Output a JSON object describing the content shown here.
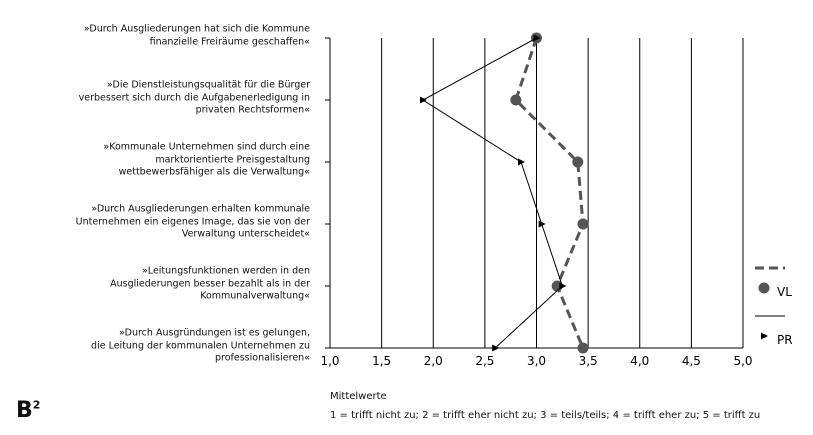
{
  "chart_data": {
    "type": "line",
    "orientation": "horizontal",
    "categories": [
      "»Durch Ausgliederungen hat sich die Kommune\nfinanzielle Freiräume geschaffen«",
      "»Die Dienstleistungsqualität für die Bürger\nverbessert sich durch die Aufgabenerledigung in\nprivaten Rechtsformen«",
      "»Kommunale Unternehmen sind durch eine\nmarktorientierte Preisgestaltung\nwettbewerbsfähiger als die Verwaltung«",
      "»Durch Ausgliederungen erhalten kommunale\nUnternehmen ein eigenes Image, das sie von der\nVerwaltung unterscheidet«",
      "»Leitungsfunktionen werden in den\nAusgliederungen besser bezahlt als in der\nKommunalverwaltung«",
      "»Durch Ausgründungen ist es gelungen,\ndie Leitung der kommunalen Unternehmen zu\nprofessionalisieren«"
    ],
    "series": [
      {
        "name": "VL",
        "color": "#555555",
        "line_style": "dashed",
        "marker": "circle",
        "values": [
          3.0,
          2.8,
          3.4,
          3.45,
          3.2,
          3.45
        ]
      },
      {
        "name": "PR",
        "color": "#000000",
        "line_style": "solid",
        "marker": "triangle",
        "values": [
          3.0,
          1.9,
          2.85,
          3.05,
          3.25,
          2.6
        ]
      }
    ],
    "xlim": [
      1,
      5
    ],
    "xticks": [
      {
        "value": 1,
        "label": "1,0"
      },
      {
        "value": 1.5,
        "label": "1,5"
      },
      {
        "value": 2,
        "label": "2,0"
      },
      {
        "value": 2.5,
        "label": "2,5"
      },
      {
        "value": 3,
        "label": "3,0"
      },
      {
        "value": 3.5,
        "label": "3,5"
      },
      {
        "value": 4,
        "label": "4,0"
      },
      {
        "value": 4.5,
        "label": "4,5"
      },
      {
        "value": 5,
        "label": "5,0"
      }
    ],
    "grid": true,
    "xlabel": "Mittelwerte",
    "note": "1 = trifft nicht zu; 2 = trifft eher nicht zu; 3 = teils/teils; 4 = trifft eher zu; 5 = trifft zu",
    "legend": "right"
  },
  "logo": {
    "text": "B",
    "superscript": "2"
  }
}
